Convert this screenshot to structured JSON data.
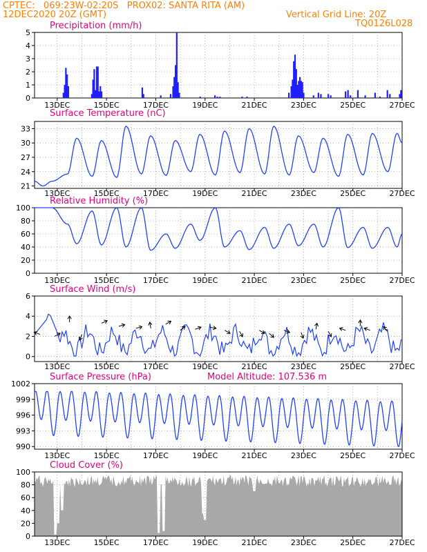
{
  "header": {
    "left_line1": "CPTEC:   069:23W-02:20S   PROX02: SANTA RITA (AM)",
    "left_line2": "12DEC2020 20Z (GMT)",
    "right_line2": "Vertical Grid Line: 20Z",
    "right_line3": "TQ0126L028"
  },
  "colors": {
    "header": "#ff7f00",
    "title": "#e0007f",
    "series": "#2040ff",
    "bar": "#2020ff",
    "cloud": "#a8a8a8",
    "grid": "#999999"
  },
  "x_ticks": [
    "13DEC",
    "15DEC",
    "17DEC",
    "19DEC",
    "21DEC",
    "23DEC",
    "25DEC",
    "27DEC"
  ],
  "chart_data": [
    {
      "type": "bar",
      "title": "Precipitation (mm/h)",
      "ylim": [
        0,
        5
      ],
      "y_ticks": [
        "0",
        "1",
        "2",
        "3",
        "4",
        "5"
      ],
      "x_range_days": [
        12.08,
        27.0
      ],
      "bars": [
        [
          13.25,
          0.4
        ],
        [
          13.3,
          1.0
        ],
        [
          13.35,
          2.3
        ],
        [
          13.4,
          1.8
        ],
        [
          13.45,
          0.9
        ],
        [
          14.4,
          0.3
        ],
        [
          14.45,
          1.4
        ],
        [
          14.5,
          2.2
        ],
        [
          14.55,
          0.6
        ],
        [
          14.6,
          2.4
        ],
        [
          14.65,
          2.4
        ],
        [
          14.7,
          0.5
        ],
        [
          14.75,
          0.9
        ],
        [
          14.8,
          0.5
        ],
        [
          16.45,
          0.8
        ],
        [
          16.5,
          0.3
        ],
        [
          17.2,
          0.2
        ],
        [
          17.6,
          0.3
        ],
        [
          17.7,
          0.9
        ],
        [
          17.75,
          1.6
        ],
        [
          17.8,
          2.5
        ],
        [
          17.85,
          5.0
        ],
        [
          17.9,
          1.2
        ],
        [
          17.95,
          0.4
        ],
        [
          18.8,
          0.1
        ],
        [
          19.4,
          0.2
        ],
        [
          19.5,
          0.1
        ],
        [
          19.6,
          0.1
        ],
        [
          20.5,
          0.1
        ],
        [
          20.7,
          0.1
        ],
        [
          22.4,
          0.4
        ],
        [
          22.5,
          0.9
        ],
        [
          22.55,
          1.4
        ],
        [
          22.6,
          2.8
        ],
        [
          22.65,
          3.3
        ],
        [
          22.7,
          2.2
        ],
        [
          22.75,
          1.0
        ],
        [
          22.8,
          1.3
        ],
        [
          22.85,
          1.6
        ],
        [
          22.9,
          1.3
        ],
        [
          22.95,
          1.2
        ],
        [
          23.0,
          0.4
        ],
        [
          23.4,
          0.2
        ],
        [
          23.6,
          0.4
        ],
        [
          23.7,
          0.3
        ],
        [
          24.0,
          0.3
        ],
        [
          24.1,
          0.2
        ],
        [
          24.7,
          0.5
        ],
        [
          24.8,
          0.6
        ],
        [
          24.9,
          0.2
        ],
        [
          25.2,
          0.6
        ],
        [
          25.5,
          0.2
        ],
        [
          25.9,
          0.4
        ],
        [
          26.1,
          0.1
        ],
        [
          26.4,
          0.6
        ],
        [
          26.5,
          0.3
        ],
        [
          26.9,
          0.3
        ],
        [
          26.95,
          0.6
        ]
      ]
    },
    {
      "type": "line",
      "title": "Surface Temperature (nC)",
      "ylim": [
        20.5,
        34.5
      ],
      "y_ticks": [
        "21",
        "24",
        "27",
        "30",
        "33"
      ],
      "tmin": [
        21.0,
        23.5,
        23.0,
        22.8,
        23.5,
        23.2,
        24.0,
        23.3,
        23.8,
        23.5,
        23.3,
        23.8,
        23.0,
        23.3,
        24.0,
        23.5
      ],
      "tmax": [
        22.0,
        31.0,
        30.5,
        33.5,
        31.5,
        30.5,
        31.8,
        32.5,
        33.0,
        33.5,
        31.5,
        31.0,
        31.8,
        32.0,
        32.0,
        32.0
      ],
      "end_value": 30.0
    },
    {
      "type": "line",
      "title": "Relative Humidity (%)",
      "ylim": [
        0,
        100
      ],
      "y_ticks": [
        "0",
        "20",
        "40",
        "60",
        "80",
        "100"
      ],
      "rhmin": [
        100,
        45,
        43,
        40,
        35,
        38,
        50,
        40,
        36,
        38,
        42,
        40,
        39,
        38,
        40,
        41
      ],
      "rhmax": [
        100,
        75,
        95,
        100,
        100,
        60,
        75,
        100,
        65,
        70,
        75,
        75,
        100,
        70,
        70,
        72
      ],
      "end_value": 60
    },
    {
      "type": "line",
      "title": "Surface Wind (m/s)",
      "ylim": [
        -0.5,
        6
      ],
      "y_ticks": [
        "0",
        "2",
        "4",
        "6"
      ],
      "note": "speed series with wind direction arrows"
    },
    {
      "type": "line",
      "title": "Surface Pressure (hPa)",
      "subtitle": "Model Altitude: 107.536 m",
      "ylim": [
        989.5,
        1002
      ],
      "y_ticks": [
        "990",
        "993",
        "996",
        "999",
        "1002"
      ]
    },
    {
      "type": "area",
      "title": "Cloud Cover (%)",
      "ylim": [
        0,
        100
      ],
      "y_ticks": [
        "0",
        "20",
        "40",
        "60",
        "80",
        "100"
      ]
    }
  ]
}
